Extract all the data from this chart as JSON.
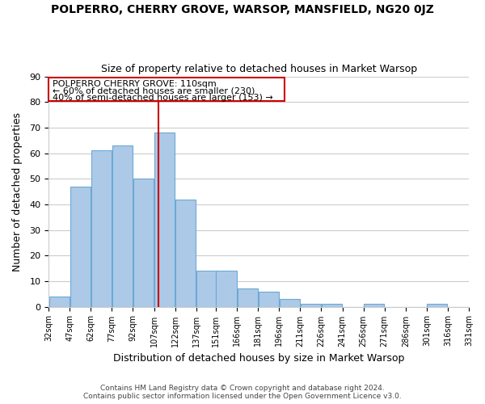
{
  "title": "POLPERRO, CHERRY GROVE, WARSOP, MANSFIELD, NG20 0JZ",
  "subtitle": "Size of property relative to detached houses in Market Warsop",
  "xlabel": "Distribution of detached houses by size in Market Warsop",
  "ylabel": "Number of detached properties",
  "bar_color": "#adc9e8",
  "bar_edge_color": "#6aaad4",
  "bar_left_edges": [
    32,
    47,
    62,
    77,
    92,
    107,
    122,
    137,
    151,
    166,
    181,
    196,
    211,
    226,
    241,
    256,
    271,
    286,
    301,
    316
  ],
  "bar_widths": [
    15,
    15,
    15,
    15,
    15,
    15,
    15,
    14,
    15,
    15,
    15,
    15,
    15,
    15,
    15,
    15,
    15,
    15,
    15,
    15
  ],
  "bar_heights": [
    4,
    47,
    61,
    63,
    50,
    68,
    42,
    14,
    14,
    7,
    6,
    3,
    1,
    1,
    0,
    1,
    0,
    0,
    1,
    0
  ],
  "tick_labels": [
    "32sqm",
    "47sqm",
    "62sqm",
    "77sqm",
    "92sqm",
    "107sqm",
    "122sqm",
    "137sqm",
    "151sqm",
    "166sqm",
    "181sqm",
    "196sqm",
    "211sqm",
    "226sqm",
    "241sqm",
    "256sqm",
    "271sqm",
    "286sqm",
    "301sqm",
    "316sqm",
    "331sqm"
  ],
  "property_line_x": 110,
  "property_line_color": "#cc0000",
  "ylim": [
    0,
    90
  ],
  "yticks": [
    0,
    10,
    20,
    30,
    40,
    50,
    60,
    70,
    80,
    90
  ],
  "annotation_title": "POLPERRO CHERRY GROVE: 110sqm",
  "annotation_line1": "← 60% of detached houses are smaller (230)",
  "annotation_line2": "40% of semi-detached houses are larger (153) →",
  "footnote1": "Contains HM Land Registry data © Crown copyright and database right 2024.",
  "footnote2": "Contains public sector information licensed under the Open Government Licence v3.0.",
  "background_color": "#ffffff",
  "grid_color": "#cccccc"
}
